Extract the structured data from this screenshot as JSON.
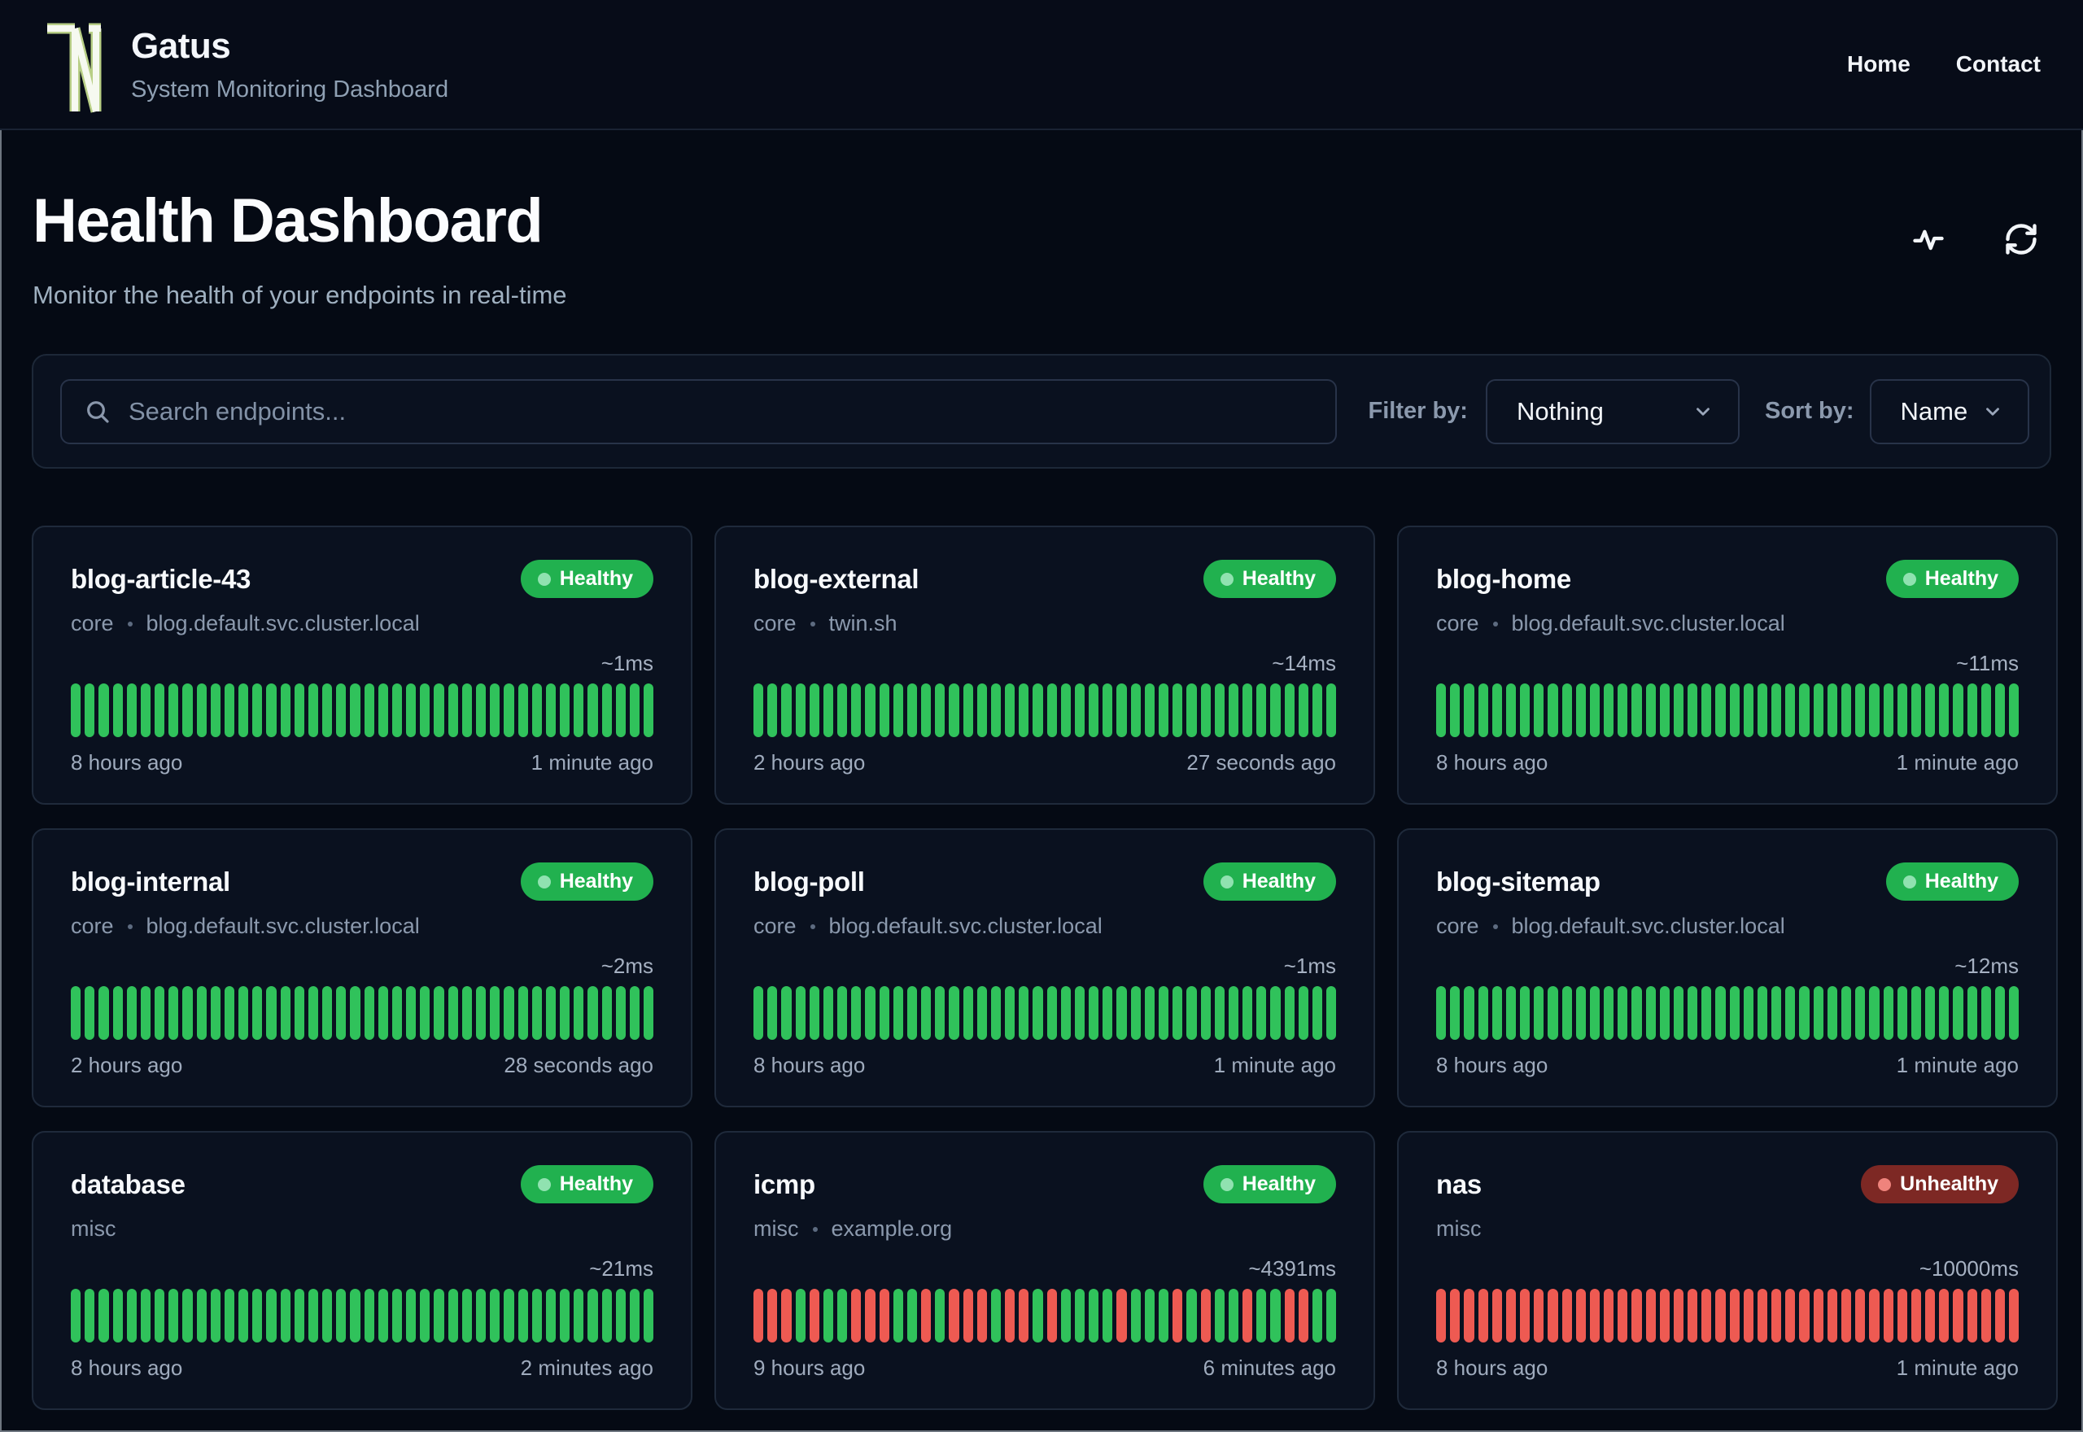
{
  "brand": {
    "name": "Gatus",
    "tagline": "System Monitoring Dashboard"
  },
  "nav": [
    {
      "label": "Home"
    },
    {
      "label": "Contact"
    }
  ],
  "hero": {
    "title": "Health Dashboard",
    "subtitle": "Monitor the health of your endpoints in real-time"
  },
  "toolbar": {
    "search_placeholder": "Search endpoints...",
    "search_value": "",
    "filter_label": "Filter by:",
    "filter_value": "Nothing",
    "sort_label": "Sort by:",
    "sort_value": "Name"
  },
  "status_labels": {
    "healthy": "Healthy",
    "unhealthy": "Unhealthy"
  },
  "colors": {
    "healthy_bar": "#30c25b",
    "unhealthy_bar": "#ee5a52",
    "healthy_badge_bg": "#21b14f",
    "healthy_badge_dot": "#90e2b0",
    "unhealthy_badge_bg": "#7d2824",
    "unhealthy_badge_dot": "#ef837c",
    "logo_outline": "#b8cf86"
  },
  "cards": [
    {
      "name": "blog-article-43",
      "group": "core",
      "host": "blog.default.svc.cluster.local",
      "status": "Healthy",
      "latency": "~1ms",
      "oldest": "8 hours ago",
      "newest": "1 minute ago",
      "bars": "gggggggggggggggggggggggggggggggggggggggggg"
    },
    {
      "name": "blog-external",
      "group": "core",
      "host": "twin.sh",
      "status": "Healthy",
      "latency": "~14ms",
      "oldest": "2 hours ago",
      "newest": "27 seconds ago",
      "bars": "gggggggggggggggggggggggggggggggggggggggggg"
    },
    {
      "name": "blog-home",
      "group": "core",
      "host": "blog.default.svc.cluster.local",
      "status": "Healthy",
      "latency": "~11ms",
      "oldest": "8 hours ago",
      "newest": "1 minute ago",
      "bars": "gggggggggggggggggggggggggggggggggggggggggg"
    },
    {
      "name": "blog-internal",
      "group": "core",
      "host": "blog.default.svc.cluster.local",
      "status": "Healthy",
      "latency": "~2ms",
      "oldest": "2 hours ago",
      "newest": "28 seconds ago",
      "bars": "gggggggggggggggggggggggggggggggggggggggggg"
    },
    {
      "name": "blog-poll",
      "group": "core",
      "host": "blog.default.svc.cluster.local",
      "status": "Healthy",
      "latency": "~1ms",
      "oldest": "8 hours ago",
      "newest": "1 minute ago",
      "bars": "gggggggggggggggggggggggggggggggggggggggggg"
    },
    {
      "name": "blog-sitemap",
      "group": "core",
      "host": "blog.default.svc.cluster.local",
      "status": "Healthy",
      "latency": "~12ms",
      "oldest": "8 hours ago",
      "newest": "1 minute ago",
      "bars": "gggggggggggggggggggggggggggggggggggggggggg"
    },
    {
      "name": "database",
      "group": "misc",
      "host": "",
      "status": "Healthy",
      "latency": "~21ms",
      "oldest": "8 hours ago",
      "newest": "2 minutes ago",
      "bars": "gggggggggggggggggggggggggggggggggggggggggg"
    },
    {
      "name": "icmp",
      "group": "misc",
      "host": "example.org",
      "status": "Healthy",
      "latency": "~4391ms",
      "oldest": "9 hours ago",
      "newest": "6 minutes ago",
      "bars": "rrrgrggrrrggrgrrrgrrgrggggrgggrgrggrggrrgg"
    },
    {
      "name": "nas",
      "group": "misc",
      "host": "",
      "status": "Unhealthy",
      "latency": "~10000ms",
      "oldest": "8 hours ago",
      "newest": "1 minute ago",
      "bars": "rrrrrrrrrrrrrrrrrrrrrrrrrrrrrrrrrrrrrrrrrr"
    }
  ]
}
